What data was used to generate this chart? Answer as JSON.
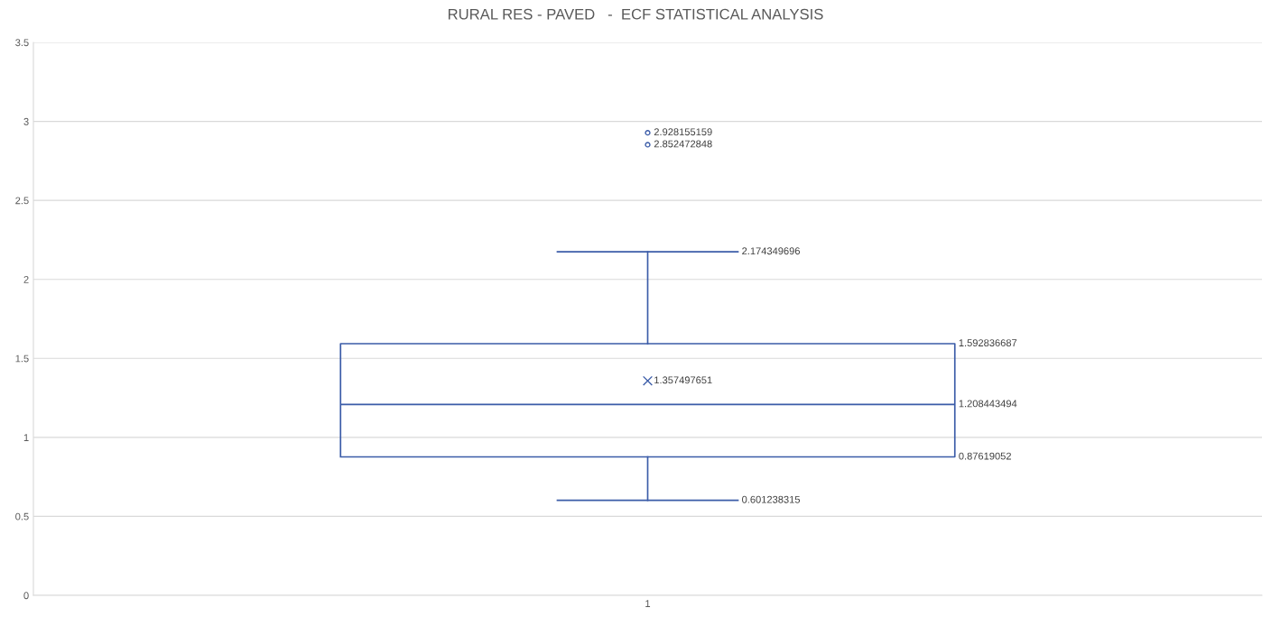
{
  "chart_data": {
    "type": "box",
    "title": "RURAL RES - PAVED   -  ECF STATISTICAL ANALYSIS",
    "categories": [
      "1"
    ],
    "series": [
      {
        "color": "#3b5ca8",
        "boxes": [
          {
            "low": 0.601238315,
            "q1": 0.87619052,
            "median": 1.208443494,
            "q3": 1.592836687,
            "high": 2.174349696,
            "mean": 1.357497651,
            "outliers": [
              2.852472848,
              2.928155159
            ]
          }
        ],
        "value_labels": [
          [
            "0.601238315",
            "0.87619052",
            "1.208443494",
            "1.592836687",
            "2.174349696",
            "1.357497651",
            "2.852472848",
            "2.928155159"
          ]
        ]
      }
    ],
    "ylim": [
      0,
      3.5
    ],
    "yticks": [
      0,
      0.5,
      1,
      1.5,
      2,
      2.5,
      3,
      3.5
    ],
    "grid": "y",
    "data_labels": true
  }
}
